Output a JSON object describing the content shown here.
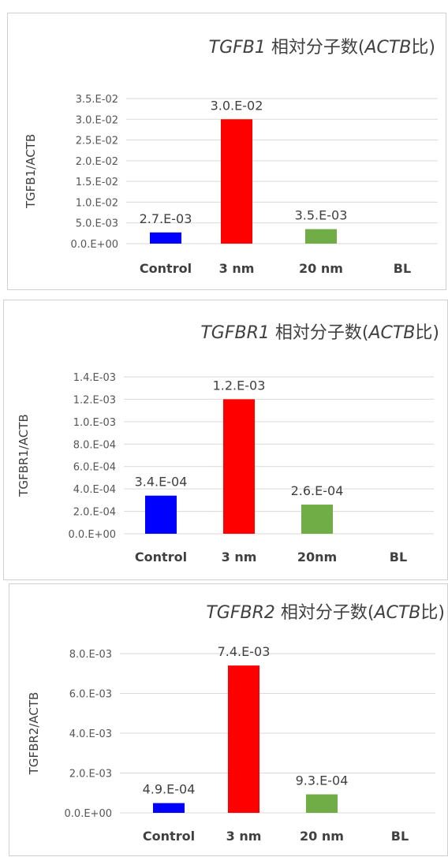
{
  "chart_data": [
    {
      "type": "bar",
      "title": {
        "gene": "TGFB1",
        "middle": " 相対分子数(",
        "ref": "ACTB",
        "suffix": "比)"
      },
      "ylabel": "TGFB1/ACTB",
      "categories": [
        "Control",
        "3 nm",
        "20 nm",
        "BL"
      ],
      "values": [
        0.0027,
        0.03,
        0.0035,
        null
      ],
      "data_labels": [
        "2.7.E-03",
        "3.0.E-02",
        "3.5.E-03",
        ""
      ],
      "colors": [
        "#0000ff",
        "#ff0000",
        "#70ad47",
        "#ffffff"
      ],
      "yticks": [
        0,
        0.005,
        0.01,
        0.015,
        0.02,
        0.025,
        0.03,
        0.035
      ],
      "ytick_labels": [
        "0.0.E+00",
        "5.0.E-03",
        "1.0.E-02",
        "1.5.E-02",
        "2.0.E-02",
        "2.5.E-02",
        "3.0.E-02",
        "3.5.E-02"
      ],
      "ylim": [
        0,
        0.035
      ],
      "grid": true
    },
    {
      "type": "bar",
      "title": {
        "gene": "TGFBR1",
        "middle": " 相対分子数(",
        "ref": "ACTB",
        "suffix": "比)"
      },
      "ylabel": "TGFBR1/ACTB",
      "categories": [
        "Control",
        "3 nm",
        "20nm",
        "BL"
      ],
      "values": [
        0.00034,
        0.0012,
        0.00026,
        null
      ],
      "data_labels": [
        "3.4.E-04",
        "1.2.E-03",
        "2.6.E-04",
        ""
      ],
      "colors": [
        "#0000ff",
        "#ff0000",
        "#70ad47",
        "#ffffff"
      ],
      "yticks": [
        0,
        0.0002,
        0.0004,
        0.0006,
        0.0008,
        0.001,
        0.0012,
        0.0014
      ],
      "ytick_labels": [
        "0.0.E+00",
        "2.0.E-04",
        "4.0.E-04",
        "6.0.E-04",
        "8.0.E-04",
        "1.0.E-03",
        "1.2.E-03",
        "1.4.E-03"
      ],
      "ylim": [
        0,
        0.0014
      ],
      "grid": true
    },
    {
      "type": "bar",
      "title": {
        "gene": "TGFBR2",
        "middle": " 相対分子数(",
        "ref": "ACTB",
        "suffix": "比)"
      },
      "ylabel": "TGFBR2/ACTB",
      "categories": [
        "Control",
        "3 nm",
        "20 nm",
        "BL"
      ],
      "values": [
        0.00049,
        0.0074,
        0.00093,
        null
      ],
      "data_labels": [
        "4.9.E-04",
        "7.4.E-03",
        "9.3.E-04",
        ""
      ],
      "colors": [
        "#0000ff",
        "#ff0000",
        "#70ad47",
        "#ffffff"
      ],
      "yticks": [
        0,
        0.002,
        0.004,
        0.006,
        0.008
      ],
      "ytick_labels": [
        "0.0.E+00",
        "2.0.E-03",
        "4.0.E-03",
        "6.0.E-03",
        "8.0.E-03"
      ],
      "ylim": [
        0,
        0.008
      ],
      "grid": true
    }
  ]
}
